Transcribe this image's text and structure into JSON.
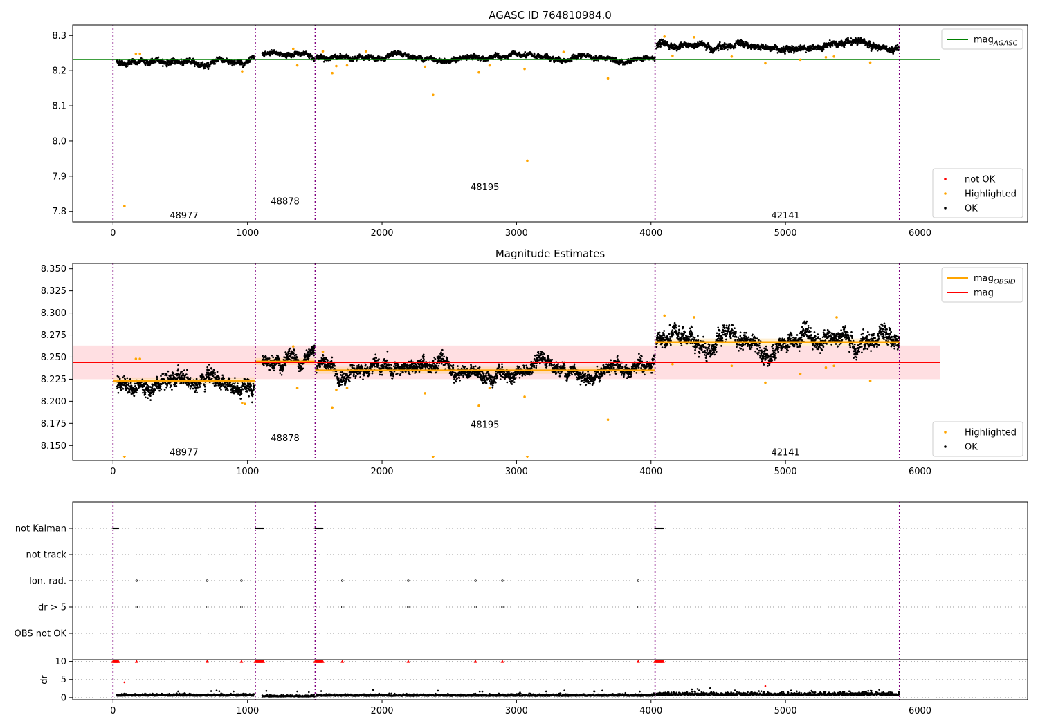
{
  "chart_data": [
    {
      "id": "agasc",
      "type": "scatter",
      "title": "AGASC ID 764810984.0",
      "xlim": [
        -300,
        6800
      ],
      "ylim": [
        7.77,
        8.33
      ],
      "xticks": [
        0,
        1000,
        2000,
        3000,
        4000,
        5000,
        6000
      ],
      "yticks": [
        7.8,
        7.9,
        8.0,
        8.1,
        8.2,
        8.3
      ],
      "ytick_labels": [
        "7.8",
        "7.9",
        "8.0",
        "8.1",
        "8.2",
        "8.3"
      ],
      "obs_boundaries": [
        0,
        1058,
        1503,
        4030,
        5847
      ],
      "obs_labels": [
        {
          "text": "48977",
          "x": 528,
          "y": 7.78
        },
        {
          "text": "48878",
          "x": 1280,
          "y": 7.82
        },
        {
          "text": "48195",
          "x": 2765,
          "y": 7.86
        },
        {
          "text": "42141",
          "x": 5000,
          "y": 7.78
        }
      ],
      "segments": [
        {
          "x0": 30,
          "x1": 1050,
          "level": 8.225,
          "noise": 0.007
        },
        {
          "x0": 1110,
          "x1": 1500,
          "level": 8.247,
          "noise": 0.006
        },
        {
          "x0": 1510,
          "x1": 4030,
          "level": 8.235,
          "noise": 0.006
        },
        {
          "x0": 4040,
          "x1": 5847,
          "level": 8.268,
          "noise": 0.008
        }
      ],
      "highlighted": [
        {
          "x": 85,
          "y": 7.815
        },
        {
          "x": 170,
          "y": 8.248
        },
        {
          "x": 200,
          "y": 8.248
        },
        {
          "x": 960,
          "y": 8.198
        },
        {
          "x": 1340,
          "y": 8.262
        },
        {
          "x": 1370,
          "y": 8.215
        },
        {
          "x": 1560,
          "y": 8.255
        },
        {
          "x": 1630,
          "y": 8.193
        },
        {
          "x": 1660,
          "y": 8.213
        },
        {
          "x": 1740,
          "y": 8.215
        },
        {
          "x": 1880,
          "y": 8.255
        },
        {
          "x": 2320,
          "y": 8.211
        },
        {
          "x": 2380,
          "y": 8.131
        },
        {
          "x": 2720,
          "y": 8.195
        },
        {
          "x": 2800,
          "y": 8.215
        },
        {
          "x": 3060,
          "y": 8.205
        },
        {
          "x": 3080,
          "y": 7.944
        },
        {
          "x": 3350,
          "y": 8.253
        },
        {
          "x": 3680,
          "y": 8.178
        },
        {
          "x": 4100,
          "y": 8.297
        },
        {
          "x": 4160,
          "y": 8.242
        },
        {
          "x": 4320,
          "y": 8.295
        },
        {
          "x": 4600,
          "y": 8.24
        },
        {
          "x": 4850,
          "y": 8.221
        },
        {
          "x": 5110,
          "y": 8.231
        },
        {
          "x": 5300,
          "y": 8.238
        },
        {
          "x": 5360,
          "y": 8.24
        },
        {
          "x": 5630,
          "y": 8.223
        }
      ],
      "lines": [
        {
          "name": "mag",
          "sub": "AGASC",
          "color": "#008000",
          "y": 8.232,
          "x0": -300,
          "x1": 6150
        }
      ],
      "legend_top": [
        {
          "label": "mag",
          "sub": "AGASC",
          "color": "#008000",
          "kind": "line"
        }
      ],
      "legend_bottom": [
        {
          "label": "not OK",
          "color": "#ff0000",
          "kind": "dot"
        },
        {
          "label": "Highlighted",
          "color": "#ffa500",
          "kind": "dot"
        },
        {
          "label": "OK",
          "color": "#000000",
          "kind": "dot"
        }
      ]
    },
    {
      "id": "estimates",
      "type": "scatter",
      "title": "Magnitude Estimates",
      "xlim": [
        -300,
        6800
      ],
      "ylim": [
        8.133,
        8.356
      ],
      "xticks": [
        0,
        1000,
        2000,
        3000,
        4000,
        5000,
        6000
      ],
      "yticks": [
        8.15,
        8.175,
        8.2,
        8.225,
        8.25,
        8.275,
        8.3,
        8.325,
        8.35
      ],
      "ytick_labels": [
        "8.150",
        "8.175",
        "8.200",
        "8.225",
        "8.250",
        "8.275",
        "8.300",
        "8.325",
        "8.350"
      ],
      "obs_boundaries": [
        0,
        1058,
        1503,
        4030,
        5847
      ],
      "obs_labels": [
        {
          "text": "48977",
          "x": 528,
          "y": 8.139
        },
        {
          "text": "48878",
          "x": 1280,
          "y": 8.155
        },
        {
          "text": "48195",
          "x": 2765,
          "y": 8.17
        },
        {
          "text": "42141",
          "x": 5000,
          "y": 8.139
        }
      ],
      "segments": [
        {
          "x0": 30,
          "x1": 1050,
          "level": 8.223,
          "noise": 0.008
        },
        {
          "x0": 1110,
          "x1": 1500,
          "level": 8.245,
          "noise": 0.007
        },
        {
          "x0": 1510,
          "x1": 4030,
          "level": 8.235,
          "noise": 0.007
        },
        {
          "x0": 4040,
          "x1": 5847,
          "level": 8.267,
          "noise": 0.009
        }
      ],
      "highlighted": [
        {
          "x": 170,
          "y": 8.248
        },
        {
          "x": 200,
          "y": 8.248
        },
        {
          "x": 960,
          "y": 8.198
        },
        {
          "x": 980,
          "y": 8.197
        },
        {
          "x": 1340,
          "y": 8.262
        },
        {
          "x": 1370,
          "y": 8.215
        },
        {
          "x": 1560,
          "y": 8.256
        },
        {
          "x": 1630,
          "y": 8.193
        },
        {
          "x": 1660,
          "y": 8.213
        },
        {
          "x": 1740,
          "y": 8.215
        },
        {
          "x": 2320,
          "y": 8.209
        },
        {
          "x": 2720,
          "y": 8.195
        },
        {
          "x": 2800,
          "y": 8.215
        },
        {
          "x": 3060,
          "y": 8.205
        },
        {
          "x": 3680,
          "y": 8.179
        },
        {
          "x": 4100,
          "y": 8.297
        },
        {
          "x": 4160,
          "y": 8.242
        },
        {
          "x": 4320,
          "y": 8.295
        },
        {
          "x": 4600,
          "y": 8.24
        },
        {
          "x": 4850,
          "y": 8.221
        },
        {
          "x": 5110,
          "y": 8.231
        },
        {
          "x": 5300,
          "y": 8.238
        },
        {
          "x": 5360,
          "y": 8.24
        },
        {
          "x": 5380,
          "y": 8.295
        },
        {
          "x": 5630,
          "y": 8.223
        }
      ],
      "offscale_markers": [
        {
          "x": 85,
          "y": 8.135
        },
        {
          "x": 2380,
          "y": 8.135
        },
        {
          "x": 3080,
          "y": 8.135
        }
      ],
      "band": {
        "y0": 8.225,
        "y1": 8.263,
        "x0": -300,
        "x1": 6150,
        "color": "#ffc0c6"
      },
      "lines": [
        {
          "name": "mag",
          "color": "#ff0000",
          "y": 8.244,
          "x0": -300,
          "x1": 6150
        }
      ],
      "obs_lines": [
        {
          "x0": 0,
          "x1": 1058,
          "y": 8.223,
          "band": [
            8.219,
            8.227
          ]
        },
        {
          "x0": 1058,
          "x1": 1503,
          "y": 8.245,
          "band": [
            8.241,
            8.249
          ]
        },
        {
          "x0": 1503,
          "x1": 4030,
          "y": 8.235,
          "band": [
            8.231,
            8.239
          ]
        },
        {
          "x0": 4030,
          "x1": 5847,
          "y": 8.267,
          "band": [
            8.263,
            8.271
          ]
        }
      ],
      "legend_top": [
        {
          "label": "mag",
          "sub": "OBSID",
          "color": "#ffa500",
          "kind": "line"
        },
        {
          "label": "mag",
          "color": "#ff0000",
          "kind": "line"
        }
      ],
      "legend_bottom": [
        {
          "label": "Highlighted",
          "color": "#ffa500",
          "kind": "dot"
        },
        {
          "label": "OK",
          "color": "#000000",
          "kind": "dot"
        }
      ]
    },
    {
      "id": "flags",
      "type": "scatter",
      "xlim": [
        -300,
        6800
      ],
      "xticks": [
        0,
        1000,
        2000,
        3000,
        4000,
        5000,
        6000
      ],
      "obs_boundaries": [
        0,
        1058,
        1503,
        4030,
        5847
      ],
      "flag_rows": [
        "not Kalman",
        "not track",
        "Ion. rad.",
        "dr > 5",
        "OBS not OK"
      ],
      "flag_events": {
        "not Kalman": [
          [
            0,
            40
          ],
          [
            1058,
            1120
          ],
          [
            1503,
            1560
          ],
          [
            4030,
            4090
          ]
        ],
        "not track": [],
        "Ion. rad.": [
          175,
          700,
          955,
          1705,
          2195,
          2695,
          2895,
          3905
        ],
        "dr > 5": [
          175,
          700,
          955,
          1705,
          2195,
          2695,
          2895,
          3905
        ],
        "OBS not OK": []
      },
      "dr": {
        "ylabel": "dr",
        "ylim": [
          -0.6,
          10.5
        ],
        "yticks": [
          0,
          5,
          10
        ],
        "ytick_labels": [
          "0",
          "5",
          "10"
        ],
        "clipped_value": 10,
        "clipped_runs": [
          [
            0,
            40
          ],
          [
            1058,
            1120
          ],
          [
            1503,
            1560
          ],
          [
            4030,
            4090
          ]
        ],
        "clipped_points": [
          175,
          700,
          955,
          1705,
          2195,
          2695,
          2895,
          3905
        ],
        "outliers": [
          {
            "x": 85,
            "y": 4.2
          },
          {
            "x": 4850,
            "y": 3.2
          }
        ],
        "segments": [
          {
            "x0": 30,
            "x1": 1050,
            "level": 0.6,
            "noise": 0.25
          },
          {
            "x0": 1110,
            "x1": 1500,
            "level": 0.35,
            "noise": 0.2
          },
          {
            "x0": 1510,
            "x1": 4030,
            "level": 0.55,
            "noise": 0.25
          },
          {
            "x0": 4040,
            "x1": 5847,
            "level": 0.8,
            "noise": 0.4
          }
        ]
      }
    }
  ]
}
